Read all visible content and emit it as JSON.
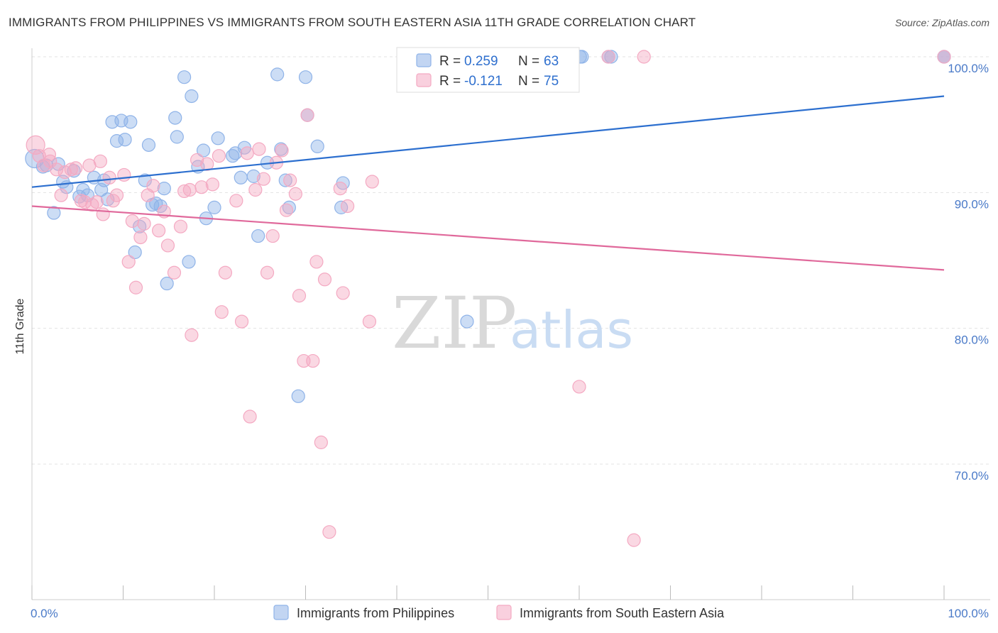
{
  "header": {
    "title": "IMMIGRANTS FROM PHILIPPINES VS IMMIGRANTS FROM SOUTH EASTERN ASIA 11TH GRADE CORRELATION CHART",
    "source": "Source: ZipAtlas.com"
  },
  "watermark": {
    "zip": "ZIP",
    "atlas": "atlas"
  },
  "chart_data": {
    "type": "scatter",
    "title": "IMMIGRANTS FROM PHILIPPINES VS IMMIGRANTS FROM SOUTH EASTERN ASIA 11TH GRADE CORRELATION CHART",
    "xlabel": "",
    "ylabel": "11th Grade",
    "xlim": [
      0,
      100
    ],
    "ylim": [
      60,
      101.5
    ],
    "x_tick_labels": [
      "0.0%",
      "100.0%"
    ],
    "y_ticks": [
      70,
      80,
      90,
      100
    ],
    "y_tick_labels": [
      "70.0%",
      "80.0%",
      "90.0%",
      "100.0%"
    ],
    "grid": true,
    "legend_placement": "top-center",
    "series": [
      {
        "name": "Immigrants from Philippines",
        "color": "#8fb3e8",
        "line_color": "#2c6fcf",
        "R_label": "R =",
        "R": "0.259",
        "N_label": "N =",
        "N": "63",
        "trend": {
          "x0": 0,
          "y0": 90.4,
          "x1": 100,
          "y1": 97.1
        },
        "points": [
          [
            0.3,
            92.5
          ],
          [
            1.2,
            91.9
          ],
          [
            1.6,
            92.0
          ],
          [
            2.4,
            88.5
          ],
          [
            2.9,
            92.1
          ],
          [
            3.4,
            90.8
          ],
          [
            3.8,
            90.4
          ],
          [
            4.6,
            91.6
          ],
          [
            5.2,
            89.7
          ],
          [
            5.6,
            90.2
          ],
          [
            6.1,
            89.8
          ],
          [
            6.8,
            91.1
          ],
          [
            7.6,
            90.2
          ],
          [
            7.9,
            90.9
          ],
          [
            8.3,
            89.5
          ],
          [
            8.8,
            95.2
          ],
          [
            9.3,
            93.8
          ],
          [
            9.8,
            95.3
          ],
          [
            10.2,
            93.9
          ],
          [
            10.8,
            95.2
          ],
          [
            11.3,
            85.6
          ],
          [
            11.8,
            87.5
          ],
          [
            12.4,
            90.9
          ],
          [
            12.8,
            93.5
          ],
          [
            13.2,
            89.1
          ],
          [
            13.6,
            89.2
          ],
          [
            14.1,
            89.0
          ],
          [
            14.5,
            90.3
          ],
          [
            14.8,
            83.3
          ],
          [
            15.7,
            95.5
          ],
          [
            15.9,
            94.1
          ],
          [
            16.7,
            98.5
          ],
          [
            17.2,
            84.9
          ],
          [
            17.5,
            97.1
          ],
          [
            18.2,
            91.9
          ],
          [
            18.8,
            93.1
          ],
          [
            19.1,
            88.1
          ],
          [
            20.0,
            88.9
          ],
          [
            20.4,
            94.0
          ],
          [
            22.0,
            92.7
          ],
          [
            22.3,
            92.9
          ],
          [
            22.9,
            91.1
          ],
          [
            23.3,
            93.3
          ],
          [
            24.3,
            91.2
          ],
          [
            24.8,
            86.8
          ],
          [
            25.8,
            92.2
          ],
          [
            26.9,
            98.7
          ],
          [
            27.3,
            93.2
          ],
          [
            27.8,
            90.9
          ],
          [
            28.2,
            88.9
          ],
          [
            30.0,
            98.5
          ],
          [
            30.2,
            95.7
          ],
          [
            31.3,
            93.4
          ],
          [
            33.9,
            88.9
          ],
          [
            34.1,
            90.7
          ],
          [
            29.2,
            75.0
          ],
          [
            47.7,
            80.5
          ],
          [
            60.1,
            100.0
          ],
          [
            60.3,
            100.0
          ],
          [
            63.2,
            100.0
          ],
          [
            63.5,
            100.0
          ],
          [
            100.0,
            100.0
          ],
          [
            100.0,
            100.0
          ]
        ]
      },
      {
        "name": "Immigrants from South Eastern Asia",
        "color": "#f4a9c2",
        "line_color": "#e0699b",
        "R_label": "R =",
        "R": "-0.121",
        "N_label": "N =",
        "N": "75",
        "trend": {
          "x0": 0,
          "y0": 89.0,
          "x1": 100,
          "y1": 84.3
        },
        "points": [
          [
            0.4,
            93.5
          ],
          [
            0.8,
            92.7
          ],
          [
            1.3,
            92.0
          ],
          [
            1.9,
            92.8
          ],
          [
            2.7,
            91.7
          ],
          [
            3.2,
            89.8
          ],
          [
            3.6,
            91.5
          ],
          [
            4.3,
            91.7
          ],
          [
            4.8,
            91.8
          ],
          [
            5.4,
            89.4
          ],
          [
            5.8,
            89.3
          ],
          [
            6.3,
            92.0
          ],
          [
            6.6,
            89.1
          ],
          [
            7.1,
            89.3
          ],
          [
            7.5,
            92.3
          ],
          [
            7.8,
            88.4
          ],
          [
            8.5,
            91.1
          ],
          [
            8.9,
            89.4
          ],
          [
            9.3,
            89.8
          ],
          [
            10.1,
            91.3
          ],
          [
            10.6,
            84.9
          ],
          [
            11.0,
            87.9
          ],
          [
            11.4,
            83.0
          ],
          [
            11.9,
            86.7
          ],
          [
            12.3,
            87.7
          ],
          [
            12.7,
            89.8
          ],
          [
            13.3,
            90.5
          ],
          [
            13.9,
            87.2
          ],
          [
            14.5,
            88.6
          ],
          [
            14.9,
            86.1
          ],
          [
            15.6,
            84.1
          ],
          [
            16.3,
            87.5
          ],
          [
            16.7,
            90.1
          ],
          [
            17.3,
            90.2
          ],
          [
            17.5,
            79.5
          ],
          [
            18.1,
            92.4
          ],
          [
            18.6,
            90.4
          ],
          [
            19.2,
            92.1
          ],
          [
            19.8,
            90.6
          ],
          [
            20.5,
            92.7
          ],
          [
            20.8,
            81.2
          ],
          [
            21.2,
            84.1
          ],
          [
            22.4,
            89.4
          ],
          [
            23.0,
            80.5
          ],
          [
            23.6,
            92.9
          ],
          [
            23.9,
            73.5
          ],
          [
            24.5,
            90.2
          ],
          [
            24.9,
            93.2
          ],
          [
            25.4,
            91.0
          ],
          [
            25.8,
            84.1
          ],
          [
            26.4,
            86.8
          ],
          [
            26.8,
            92.2
          ],
          [
            27.4,
            93.1
          ],
          [
            27.9,
            88.7
          ],
          [
            28.3,
            90.9
          ],
          [
            28.9,
            89.9
          ],
          [
            29.3,
            82.4
          ],
          [
            29.8,
            77.6
          ],
          [
            30.2,
            95.7
          ],
          [
            30.8,
            77.6
          ],
          [
            31.2,
            84.9
          ],
          [
            31.7,
            71.6
          ],
          [
            32.1,
            83.6
          ],
          [
            32.6,
            65.0
          ],
          [
            33.8,
            90.3
          ],
          [
            34.1,
            82.6
          ],
          [
            34.6,
            89.0
          ],
          [
            37.3,
            90.8
          ],
          [
            37.0,
            80.5
          ],
          [
            60.0,
            75.7
          ],
          [
            63.2,
            100.0
          ],
          [
            66.0,
            64.4
          ],
          [
            67.1,
            100.0
          ],
          [
            100.0,
            100.0
          ],
          [
            2.0,
            92.3
          ]
        ]
      }
    ]
  }
}
